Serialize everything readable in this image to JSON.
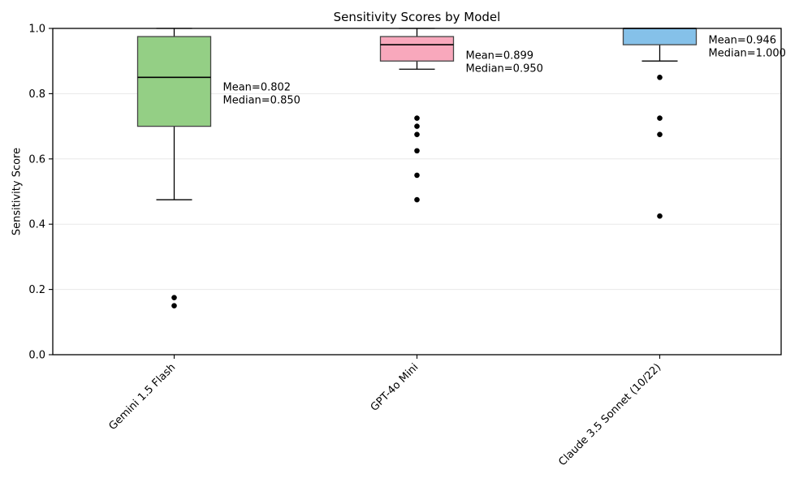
{
  "figure": {
    "title": "Sensitivity Scores by Model",
    "ylabel": "Sensitivity Score"
  },
  "chart_data": {
    "type": "boxplot",
    "title": "Sensitivity Scores by Model",
    "xlabel": "",
    "ylabel": "Sensitivity Score",
    "ylim": [
      0.0,
      1.0
    ],
    "yticks": [
      0.0,
      0.2,
      0.4,
      0.6,
      0.8,
      1.0
    ],
    "ytick_labels": [
      "0.0",
      "0.2",
      "0.4",
      "0.6",
      "0.8",
      "1.0"
    ],
    "grid": "horizontal-light",
    "grid_color": "#e8e8e8",
    "edge_color": "#444444",
    "median_color": "#000000",
    "outlier_color": "#000000",
    "categories": [
      "Gemini 1.5 Flash",
      "GPT-4o Mini",
      "Claude 3.5 Sonnet (10/22)"
    ],
    "series": [
      {
        "label": "Gemini 1.5 Flash",
        "box_color": "#94cf85",
        "whisker_low": 0.475,
        "q1": 0.7,
        "median": 0.85,
        "q3": 0.975,
        "whisker_high": 1.0,
        "outliers": [
          0.175,
          0.15
        ],
        "mean": 0.802,
        "annotation": [
          "Mean=0.802",
          "Median=0.850"
        ]
      },
      {
        "label": "GPT-4o Mini",
        "box_color": "#f8a8bc",
        "whisker_low": 0.875,
        "q1": 0.9,
        "median": 0.95,
        "q3": 0.975,
        "whisker_high": 1.0,
        "outliers": [
          0.725,
          0.7,
          0.675,
          0.625,
          0.55,
          0.475
        ],
        "mean": 0.899,
        "annotation": [
          "Mean=0.899",
          "Median=0.950"
        ]
      },
      {
        "label": "Claude 3.5 Sonnet (10/22)",
        "box_color": "#85c1e9",
        "whisker_low": 0.9,
        "q1": 0.95,
        "median": 1.0,
        "q3": 1.0,
        "whisker_high": 1.0,
        "outliers": [
          0.85,
          0.725,
          0.675,
          0.425
        ],
        "mean": 0.946,
        "annotation": [
          "Mean=0.946",
          "Median=1.000"
        ]
      }
    ]
  }
}
